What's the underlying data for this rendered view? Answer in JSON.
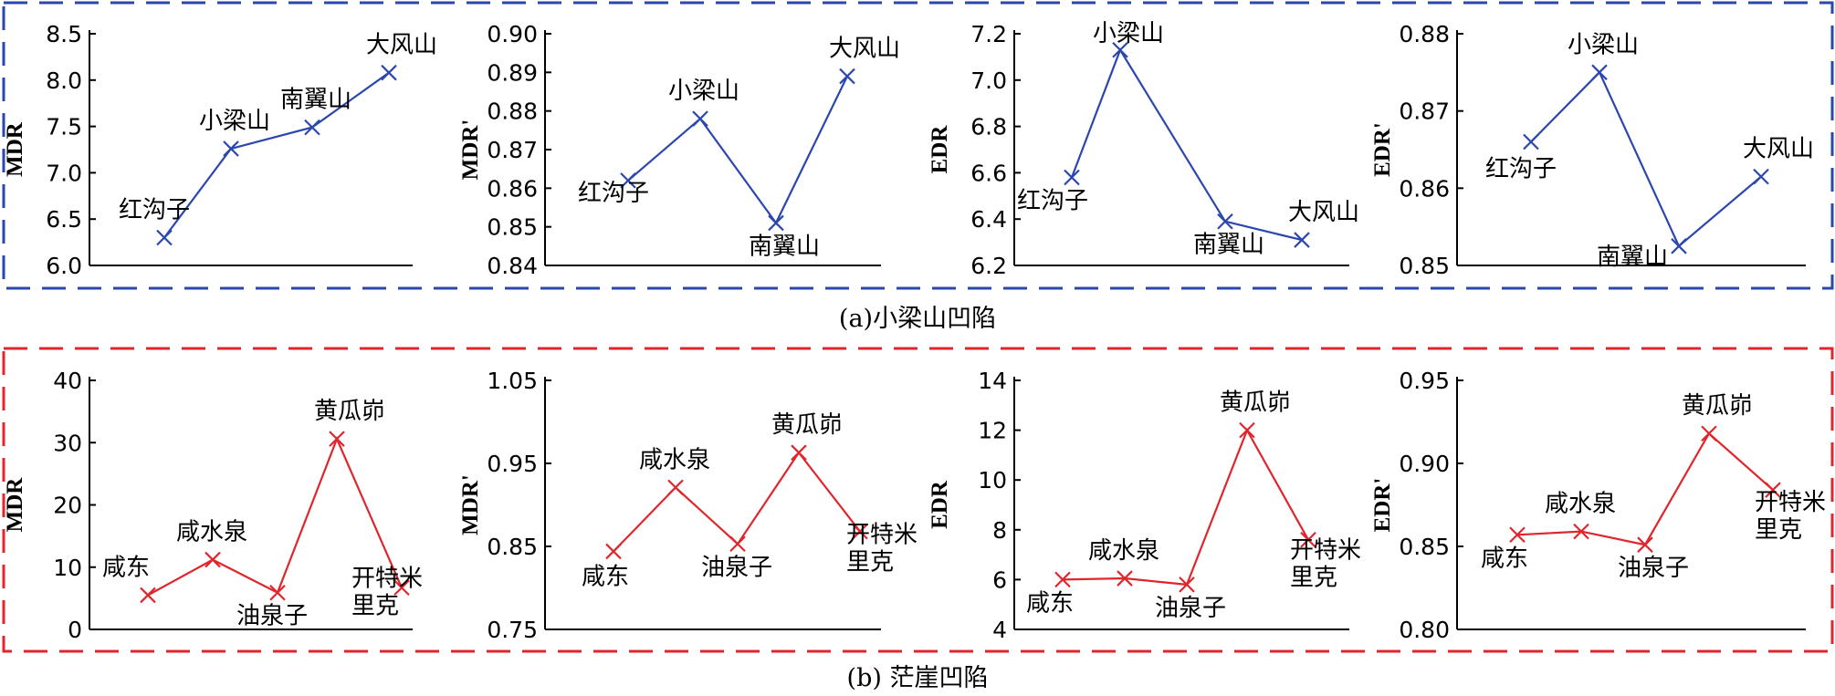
{
  "panels": [
    {
      "caption": "(a)小梁山凹陷",
      "color": "#2b47ad"
    },
    {
      "caption": "(b) 茫崖凹陷",
      "color": "#e0252c"
    }
  ],
  "chart_data": [
    {
      "type": "line",
      "panel": 0,
      "ylabel": "MDR",
      "ylim": [
        6.0,
        8.5
      ],
      "yticks": [
        "6.0",
        "6.5",
        "7.0",
        "7.5",
        "8.0",
        "8.5"
      ],
      "categories": [
        "红沟子",
        "小梁山",
        "南翼山",
        "大风山"
      ],
      "values": [
        6.3,
        7.26,
        7.49,
        8.08
      ],
      "color": "#2b47ad"
    },
    {
      "type": "line",
      "panel": 0,
      "ylabel": "MDR'",
      "ylim": [
        0.84,
        0.9
      ],
      "yticks": [
        "0.84",
        "0.85",
        "0.86",
        "0.87",
        "0.88",
        "0.89",
        "0.90"
      ],
      "categories": [
        "红沟子",
        "小梁山",
        "南翼山",
        "大风山"
      ],
      "values": [
        0.862,
        0.878,
        0.851,
        0.889
      ],
      "color": "#2b47ad"
    },
    {
      "type": "line",
      "panel": 0,
      "ylabel": "EDR",
      "ylim": [
        6.2,
        7.2
      ],
      "yticks": [
        "6.2",
        "6.4",
        "6.6",
        "6.8",
        "7.0",
        "7.2"
      ],
      "categories": [
        "红沟子",
        "小梁山",
        "南翼山",
        "大风山"
      ],
      "values": [
        6.58,
        7.13,
        6.39,
        6.31
      ],
      "color": "#2b47ad"
    },
    {
      "type": "line",
      "panel": 0,
      "ylabel": "EDR'",
      "ylim": [
        0.85,
        0.88
      ],
      "yticks": [
        "0.85",
        "0.86",
        "0.87",
        "0.88"
      ],
      "categories": [
        "红沟子",
        "小梁山",
        "南翼山",
        "大风山"
      ],
      "values": [
        0.866,
        0.875,
        0.8525,
        0.8615
      ],
      "color": "#2b47ad"
    },
    {
      "type": "line",
      "panel": 1,
      "ylabel": "MDR",
      "ylim": [
        0,
        40
      ],
      "yticks": [
        "0",
        "10",
        "20",
        "30",
        "40"
      ],
      "categories": [
        "咸东",
        "咸水泉",
        "油泉子",
        "黄瓜峁",
        "开特米里克"
      ],
      "values": [
        5.5,
        11.2,
        5.9,
        30.6,
        6.7
      ],
      "color": "#e0252c"
    },
    {
      "type": "line",
      "panel": 1,
      "ylabel": "MDR'",
      "ylim": [
        0.75,
        1.05
      ],
      "yticks": [
        "0.75",
        "0.85",
        "0.95",
        "1.05"
      ],
      "categories": [
        "咸东",
        "咸水泉",
        "油泉子",
        "黄瓜峁",
        "开特米里克"
      ],
      "values": [
        0.844,
        0.921,
        0.853,
        0.963,
        0.868
      ],
      "color": "#e0252c"
    },
    {
      "type": "line",
      "panel": 1,
      "ylabel": "EDR",
      "ylim": [
        4,
        14
      ],
      "yticks": [
        "4",
        "6",
        "8",
        "10",
        "12",
        "14"
      ],
      "categories": [
        "咸东",
        "咸水泉",
        "油泉子",
        "黄瓜峁",
        "开特米里克"
      ],
      "values": [
        6.0,
        6.05,
        5.8,
        12.0,
        7.6
      ],
      "color": "#e0252c"
    },
    {
      "type": "line",
      "panel": 1,
      "ylabel": "EDR'",
      "ylim": [
        0.8,
        0.95
      ],
      "yticks": [
        "0.80",
        "0.85",
        "0.90",
        "0.95"
      ],
      "categories": [
        "咸东",
        "咸水泉",
        "油泉子",
        "黄瓜峁",
        "开特米里克"
      ],
      "values": [
        0.857,
        0.859,
        0.851,
        0.918,
        0.884
      ],
      "color": "#e0252c"
    }
  ]
}
